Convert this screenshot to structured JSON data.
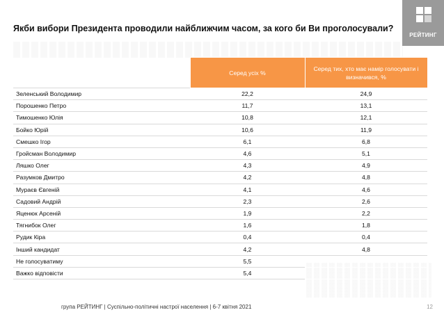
{
  "title": "Якби вибори Президента проводили найближчим часом, за кого би Ви проголосували?",
  "logo": {
    "text": "РЕЙТИНГ",
    "icon": "rating-logo-icon",
    "background": "#9a9a9a"
  },
  "table": {
    "headers": [
      "",
      "Серед усіх %",
      "Серед тих, хто має намір голосувати і визначився, %"
    ],
    "rows": [
      [
        "Зеленський Володимир",
        "22,2",
        "24,9"
      ],
      [
        "Порошенко Петро",
        "11,7",
        "13,1"
      ],
      [
        "Тимошенко Юлія",
        "10,8",
        "12,1"
      ],
      [
        "Бойко Юрій",
        "10,6",
        "11,9"
      ],
      [
        "Смешко Ігор",
        "6,1",
        "6,8"
      ],
      [
        "Гройсман Володимир",
        "4,6",
        "5,1"
      ],
      [
        "Ляшко Олег",
        "4,3",
        "4,9"
      ],
      [
        "Разумков Дмитро",
        "4,2",
        "4,8"
      ],
      [
        "Мураєв Євгеній",
        "4,1",
        "4,6"
      ],
      [
        "Садовий Андрій",
        "2,3",
        "2,6"
      ],
      [
        "Яценюк Арсеній",
        "1,9",
        "2,2"
      ],
      [
        "Тягнибок Олег",
        "1,6",
        "1,8"
      ],
      [
        "Рудик Кіра",
        "0,4",
        "0,4"
      ],
      [
        "Інший кандидат",
        "4,2",
        "4,8"
      ],
      [
        "Не голосуватиму",
        "5,5",
        ""
      ],
      [
        "Важко відповісти",
        "5,4",
        ""
      ]
    ],
    "header_color": "#f79646"
  },
  "footer": "група РЕЙТИНГ | Суспільно-політичні настрої населення | 6-7 квітня 2021",
  "page_number": "12"
}
